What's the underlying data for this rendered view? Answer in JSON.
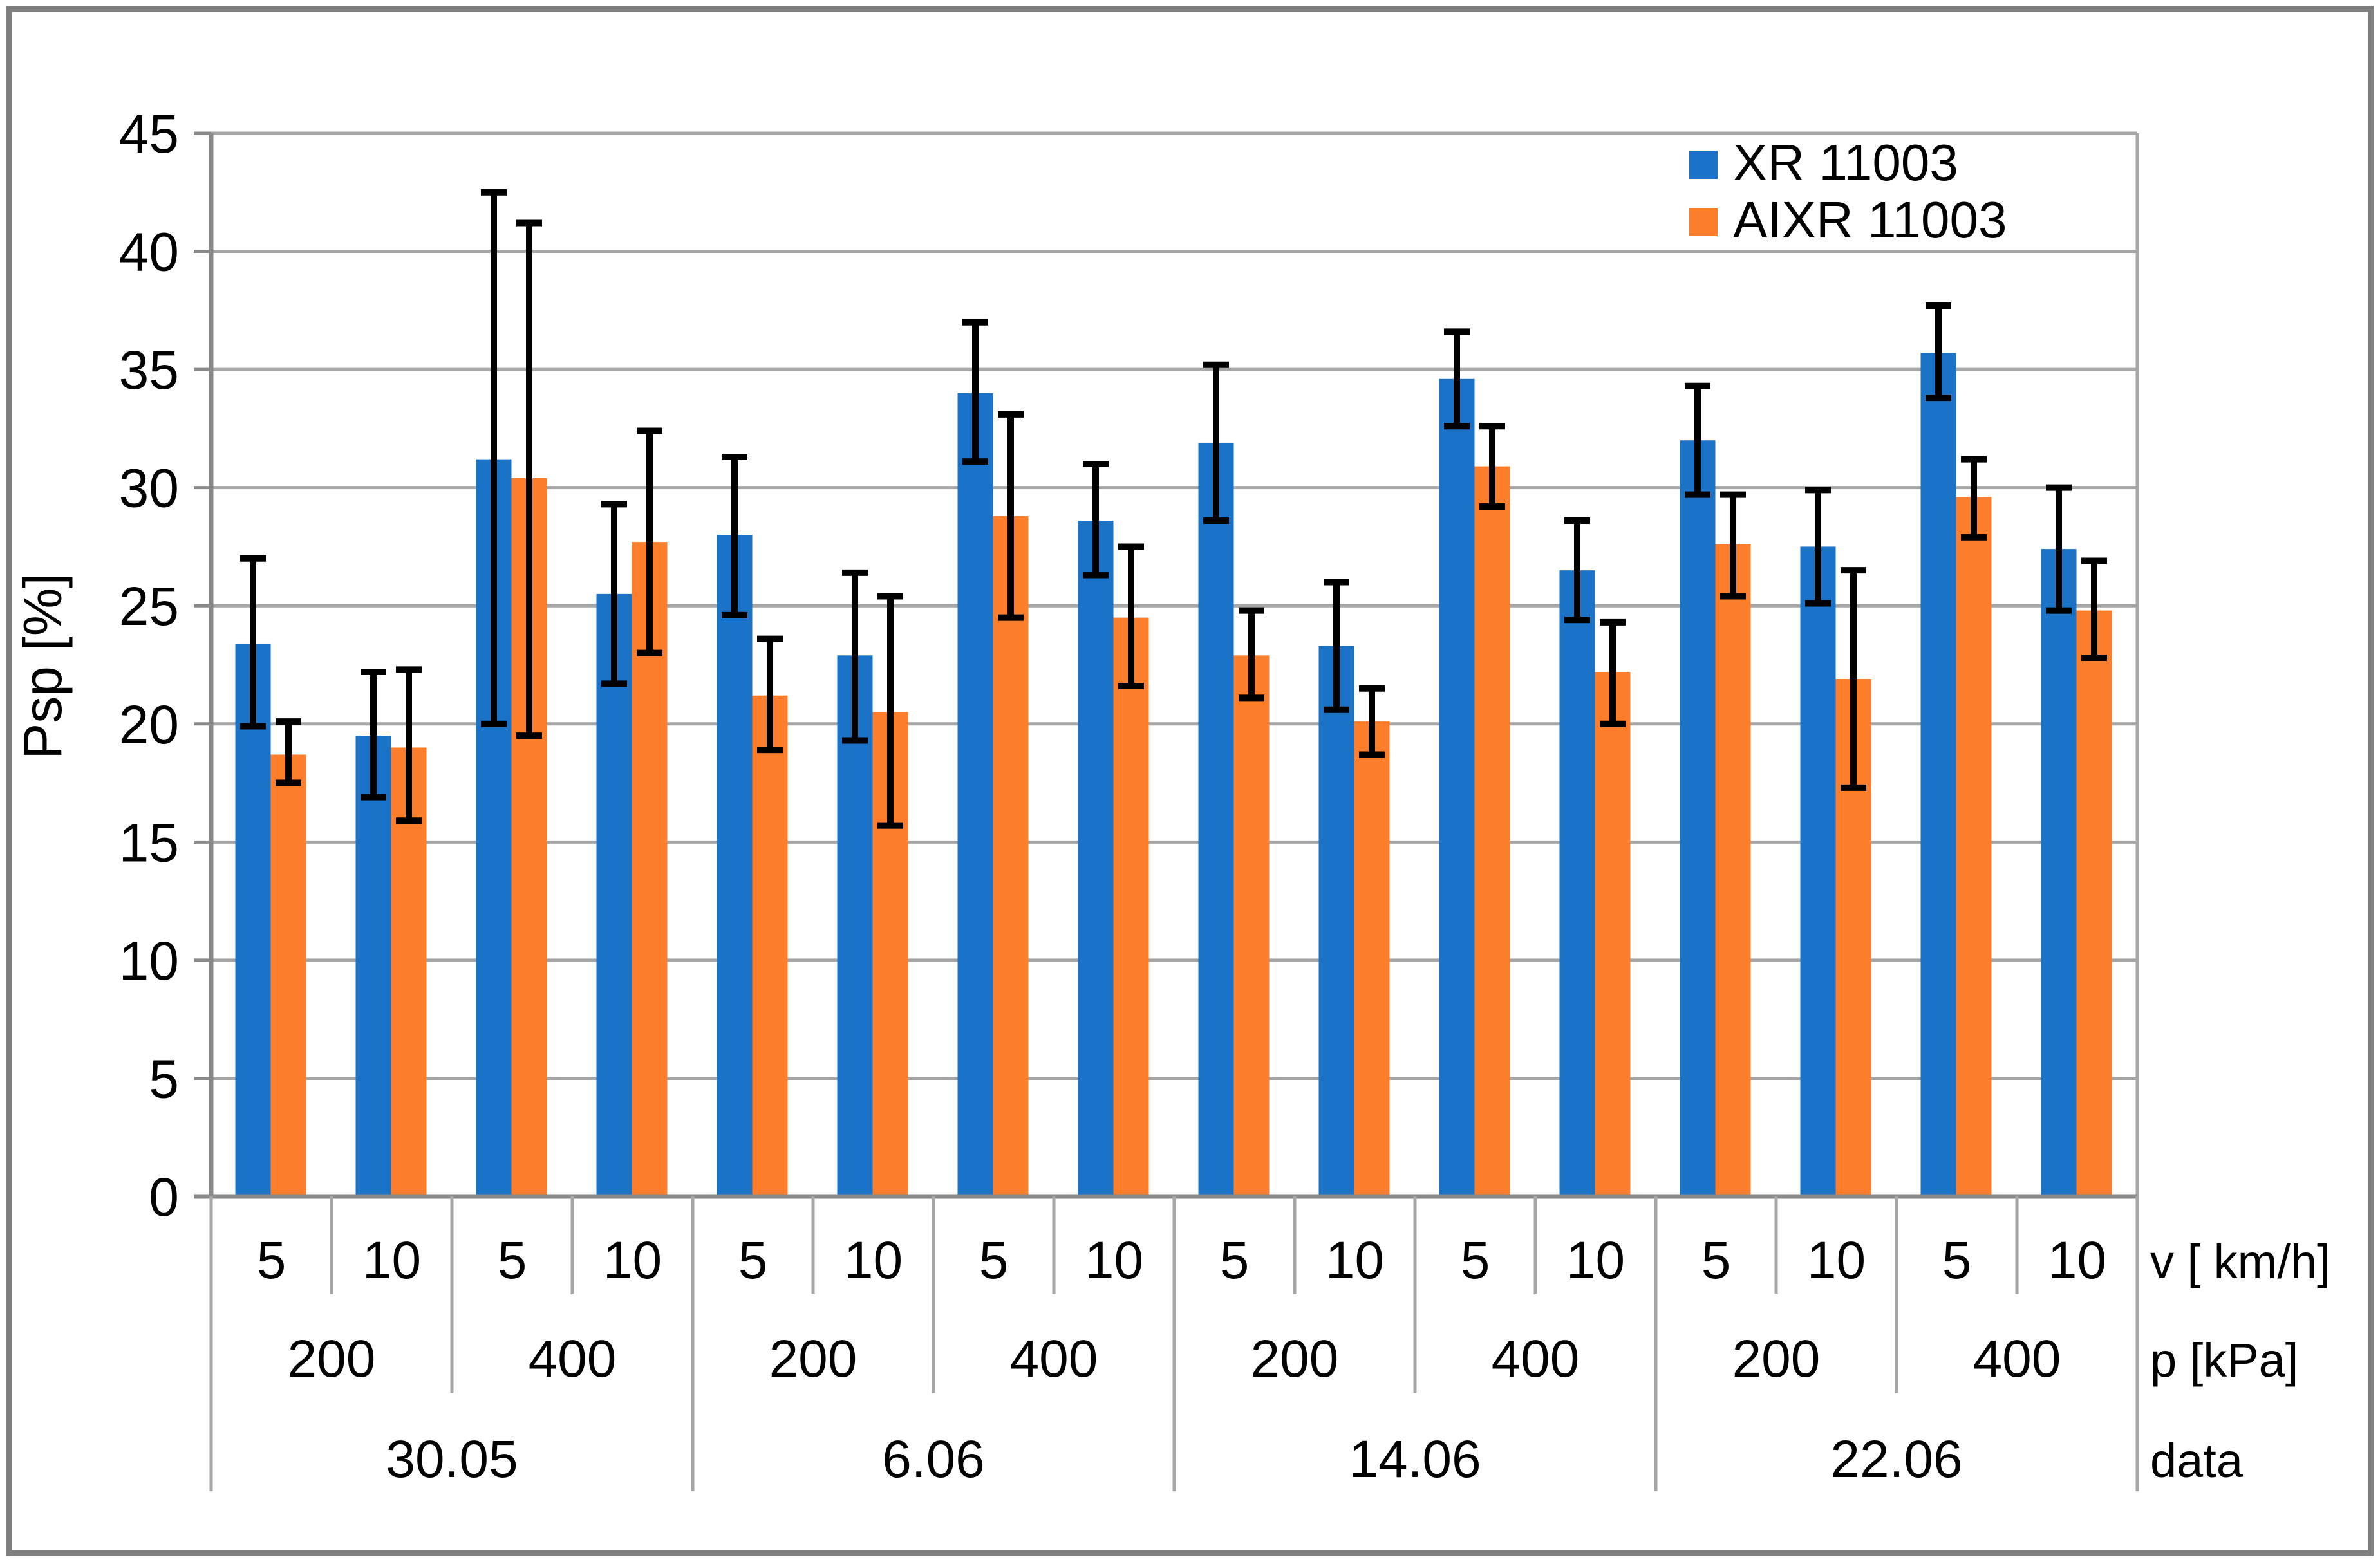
{
  "chart_data": {
    "type": "bar",
    "title": "",
    "ylabel": "Psp [%]",
    "y_axis": {
      "min": 0,
      "max": 45,
      "step": 5,
      "ticks": [
        "0",
        "5",
        "10",
        "15",
        "20",
        "25",
        "30",
        "35",
        "40",
        "45"
      ]
    },
    "grid": true,
    "legend_position": "top-right-inside",
    "series_meta": [
      {
        "name": "XR 11003",
        "color": "#1B73C8"
      },
      {
        "name": "AIXR 11003",
        "color": "#FC7D2A"
      }
    ],
    "axis_row_titles": {
      "v": "v [ km/h]",
      "p": "p [kPa]",
      "date": "data"
    },
    "groups": [
      {
        "date": "30.05",
        "pressures": [
          {
            "p": "200",
            "speeds": [
              {
                "v": "5",
                "XR": {
                  "value": 23.4,
                  "err": [
                    19.9,
                    27.0
                  ]
                },
                "AIXR": {
                  "value": 18.7,
                  "err": [
                    17.5,
                    20.1
                  ]
                }
              },
              {
                "v": "10",
                "XR": {
                  "value": 19.5,
                  "err": [
                    16.9,
                    22.2
                  ]
                },
                "AIXR": {
                  "value": 19.0,
                  "err": [
                    15.9,
                    22.3
                  ]
                }
              }
            ]
          },
          {
            "p": "400",
            "speeds": [
              {
                "v": "5",
                "XR": {
                  "value": 31.2,
                  "err": [
                    20.0,
                    42.5
                  ]
                },
                "AIXR": {
                  "value": 30.4,
                  "err": [
                    19.5,
                    41.2
                  ]
                }
              },
              {
                "v": "10",
                "XR": {
                  "value": 25.5,
                  "err": [
                    21.7,
                    29.3
                  ]
                },
                "AIXR": {
                  "value": 27.7,
                  "err": [
                    23.0,
                    32.4
                  ]
                }
              }
            ]
          }
        ]
      },
      {
        "date": "6.06",
        "pressures": [
          {
            "p": "200",
            "speeds": [
              {
                "v": "5",
                "XR": {
                  "value": 28.0,
                  "err": [
                    24.6,
                    31.3
                  ]
                },
                "AIXR": {
                  "value": 21.2,
                  "err": [
                    18.9,
                    23.6
                  ]
                }
              },
              {
                "v": "10",
                "XR": {
                  "value": 22.9,
                  "err": [
                    19.3,
                    26.4
                  ]
                },
                "AIXR": {
                  "value": 20.5,
                  "err": [
                    15.7,
                    25.4
                  ]
                }
              }
            ]
          },
          {
            "p": "400",
            "speeds": [
              {
                "v": "5",
                "XR": {
                  "value": 34.0,
                  "err": [
                    31.1,
                    37.0
                  ]
                },
                "AIXR": {
                  "value": 28.8,
                  "err": [
                    24.5,
                    33.1
                  ]
                }
              },
              {
                "v": "10",
                "XR": {
                  "value": 28.6,
                  "err": [
                    26.3,
                    31.0
                  ]
                },
                "AIXR": {
                  "value": 24.5,
                  "err": [
                    21.6,
                    27.5
                  ]
                }
              }
            ]
          }
        ]
      },
      {
        "date": "14.06",
        "pressures": [
          {
            "p": "200",
            "speeds": [
              {
                "v": "5",
                "XR": {
                  "value": 31.9,
                  "err": [
                    28.6,
                    35.2
                  ]
                },
                "AIXR": {
                  "value": 22.9,
                  "err": [
                    21.1,
                    24.8
                  ]
                }
              },
              {
                "v": "10",
                "XR": {
                  "value": 23.3,
                  "err": [
                    20.6,
                    26.0
                  ]
                },
                "AIXR": {
                  "value": 20.1,
                  "err": [
                    18.7,
                    21.5
                  ]
                }
              }
            ]
          },
          {
            "p": "400",
            "speeds": [
              {
                "v": "5",
                "XR": {
                  "value": 34.6,
                  "err": [
                    32.6,
                    36.6
                  ]
                },
                "AIXR": {
                  "value": 30.9,
                  "err": [
                    29.2,
                    32.6
                  ]
                }
              },
              {
                "v": "10",
                "XR": {
                  "value": 26.5,
                  "err": [
                    24.4,
                    28.6
                  ]
                },
                "AIXR": {
                  "value": 22.2,
                  "err": [
                    20.0,
                    24.3
                  ]
                }
              }
            ]
          }
        ]
      },
      {
        "date": "22.06",
        "pressures": [
          {
            "p": "200",
            "speeds": [
              {
                "v": "5",
                "XR": {
                  "value": 32.0,
                  "err": [
                    29.7,
                    34.3
                  ]
                },
                "AIXR": {
                  "value": 27.6,
                  "err": [
                    25.4,
                    29.7
                  ]
                }
              },
              {
                "v": "10",
                "XR": {
                  "value": 27.5,
                  "err": [
                    25.1,
                    29.9
                  ]
                },
                "AIXR": {
                  "value": 21.9,
                  "err": [
                    17.3,
                    26.5
                  ]
                }
              }
            ]
          },
          {
            "p": "400",
            "speeds": [
              {
                "v": "5",
                "XR": {
                  "value": 35.7,
                  "err": [
                    33.8,
                    37.7
                  ]
                },
                "AIXR": {
                  "value": 29.6,
                  "err": [
                    27.9,
                    31.2
                  ]
                }
              },
              {
                "v": "10",
                "XR": {
                  "value": 27.4,
                  "err": [
                    24.8,
                    30.0
                  ]
                },
                "AIXR": {
                  "value": 24.8,
                  "err": [
                    22.8,
                    26.9
                  ]
                }
              }
            ]
          }
        ]
      }
    ],
    "colors": {
      "grid": "#A6A6A6",
      "axis": "#898989",
      "frame": "#7F7F7F",
      "error_bar": "#000000",
      "text": "#000000",
      "background": "#FFFFFF"
    }
  }
}
